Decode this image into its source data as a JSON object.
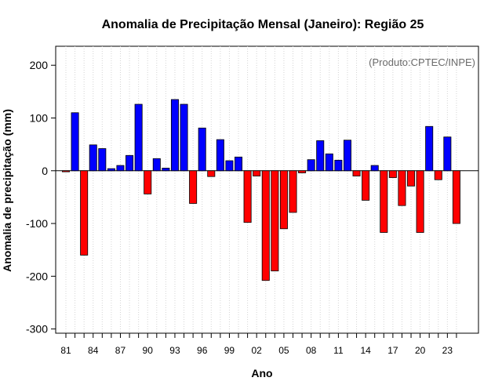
{
  "chart_data": {
    "type": "bar",
    "title": "Anomalia de Precipitação Mensal (Janeiro): Região 25",
    "xlabel": "Ano",
    "ylabel": "Anomalia de precipitação (mm)",
    "credit": "(Produto:CPTEC/INPE)",
    "ylim": [
      -308,
      236
    ],
    "yticks": [
      200,
      100,
      0,
      -100,
      -200,
      -300
    ],
    "x_tick_labels": [
      "81",
      "84",
      "87",
      "90",
      "93",
      "96",
      "99",
      "02",
      "05",
      "08",
      "11",
      "14",
      "17",
      "20",
      "23"
    ],
    "x_tick_years": [
      1981,
      1984,
      1987,
      1990,
      1993,
      1996,
      1999,
      2002,
      2005,
      2008,
      2011,
      2014,
      2017,
      2020,
      2023
    ],
    "years": [
      1981,
      1982,
      1983,
      1984,
      1985,
      1986,
      1987,
      1988,
      1989,
      1990,
      1991,
      1992,
      1993,
      1994,
      1995,
      1996,
      1997,
      1998,
      1999,
      2000,
      2001,
      2002,
      2003,
      2004,
      2005,
      2006,
      2007,
      2008,
      2009,
      2010,
      2011,
      2012,
      2013,
      2014,
      2015,
      2016,
      2017,
      2018,
      2019,
      2020,
      2021,
      2022,
      2023,
      2024
    ],
    "values": [
      -2,
      110,
      -160,
      49,
      42,
      4,
      10,
      29,
      126,
      -44,
      23,
      5,
      135,
      126,
      -62,
      81,
      -11,
      59,
      19,
      26,
      -98,
      -10,
      -208,
      -190,
      -110,
      -79,
      -4,
      21,
      57,
      32,
      20,
      58,
      -10,
      -56,
      10,
      -117,
      -13,
      -66,
      -29,
      -117,
      84,
      -17,
      64,
      -100
    ],
    "positive_color": "#0000ff",
    "negative_color": "#ff0000"
  }
}
